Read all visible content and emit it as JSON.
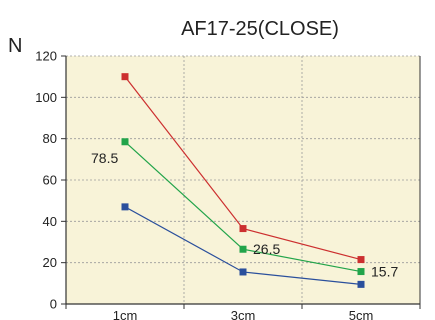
{
  "chart_data": {
    "type": "line",
    "title": "AF17-25(CLOSE)",
    "ylabel": "N",
    "xlabel": "",
    "categories": [
      "1cm",
      "3cm",
      "5cm"
    ],
    "ylim": [
      0,
      120
    ],
    "yticks": [
      0,
      20,
      40,
      60,
      80,
      100,
      120
    ],
    "grid": true,
    "plot_background": "#f8f3d8",
    "series": [
      {
        "color": "#cc2f2f",
        "values": [
          110,
          36.5,
          21.5
        ]
      },
      {
        "color": "#22a44a",
        "values": [
          78.5,
          26.5,
          15.7
        ]
      },
      {
        "color": "#2a4f9c",
        "values": [
          47,
          15.5,
          9.5
        ]
      }
    ],
    "data_labels": [
      {
        "text": "78.5",
        "series": 1,
        "index": 0
      },
      {
        "text": "26.5",
        "series": 1,
        "index": 1
      },
      {
        "text": "15.7",
        "series": 1,
        "index": 2
      }
    ]
  }
}
